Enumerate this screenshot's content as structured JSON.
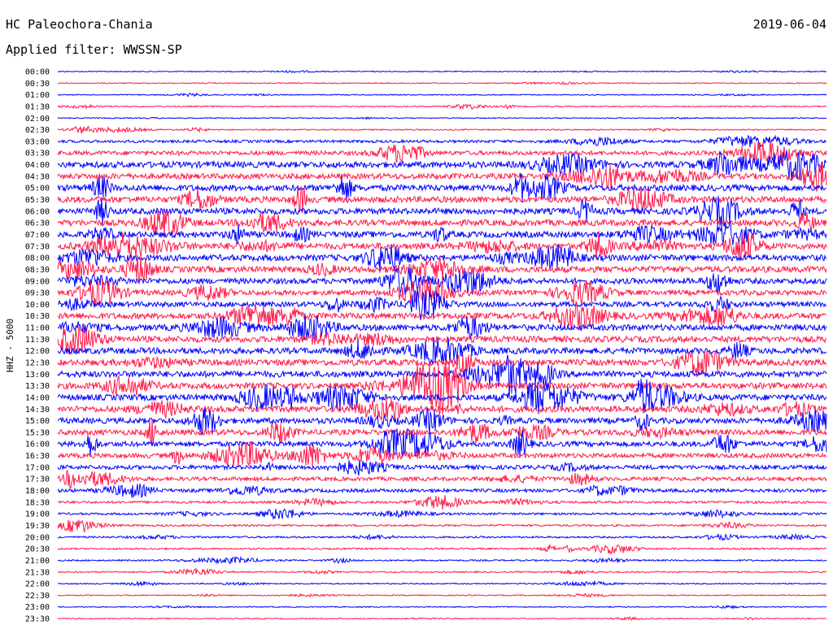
{
  "header": {
    "station": "HC Paleochora-Chania",
    "filter": "Applied filter: WWSSN-SP",
    "date": "2019-06-04"
  },
  "chart_data": {
    "type": "line",
    "title": "HC Paleochora-Chania",
    "subtitle": "Applied filter: WWSSN-SP",
    "date": "2019-06-04",
    "ylabel": "HHZ - 5000",
    "xlabel": "",
    "row_labels": [
      "00:00",
      "00:30",
      "01:00",
      "01:30",
      "02:00",
      "02:30",
      "03:00",
      "03:30",
      "04:00",
      "04:30",
      "05:00",
      "05:30",
      "06:00",
      "06:30",
      "07:00",
      "07:30",
      "08:00",
      "08:30",
      "09:00",
      "09:30",
      "10:00",
      "10:30",
      "11:00",
      "11:30",
      "12:00",
      "12:30",
      "13:00",
      "13:30",
      "14:00",
      "14:30",
      "15:00",
      "15:30",
      "16:00",
      "16:30",
      "17:00",
      "17:30",
      "18:00",
      "18:30",
      "19:00",
      "19:30",
      "20:00",
      "20:30",
      "21:00",
      "21:30",
      "22:00",
      "22:30",
      "23:00",
      "23:30"
    ],
    "row_minutes": 30,
    "activity_level": [
      0.05,
      0.06,
      0.08,
      0.18,
      0.06,
      0.22,
      0.55,
      0.75,
      0.95,
      0.9,
      0.95,
      0.95,
      0.95,
      0.95,
      0.95,
      0.95,
      0.95,
      0.95,
      0.9,
      0.85,
      0.85,
      0.95,
      0.95,
      0.95,
      0.95,
      0.95,
      0.95,
      0.95,
      0.95,
      0.95,
      0.9,
      0.9,
      0.85,
      0.8,
      0.75,
      0.7,
      0.65,
      0.5,
      0.45,
      0.4,
      0.38,
      0.35,
      0.3,
      0.25,
      0.18,
      0.12,
      0.1,
      0.08
    ],
    "colors": {
      "odd_rows": "#0000ff",
      "even_rows": "#ff1a4a"
    },
    "grid": false
  }
}
